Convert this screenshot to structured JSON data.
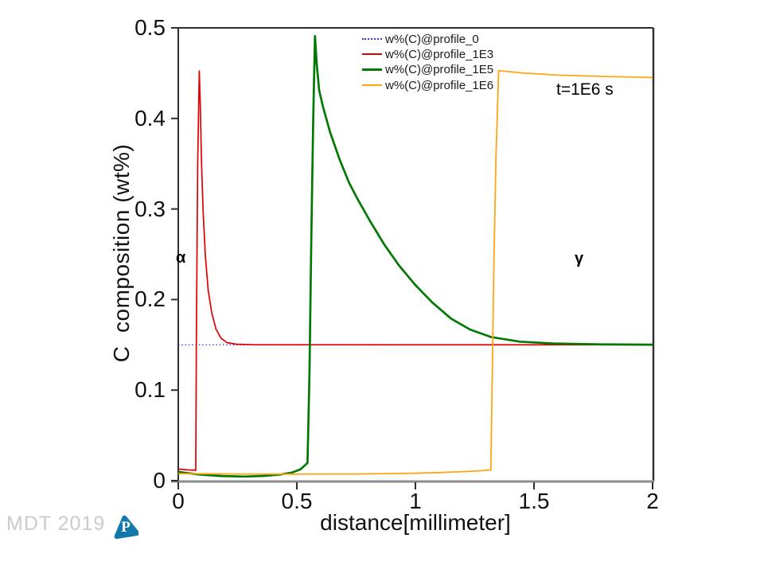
{
  "watermark": {
    "text": "MDT 2019",
    "color": "#cbcbcb"
  },
  "logo": {
    "letter": "P",
    "color": "#1478ab"
  },
  "annotations": {
    "time_label": "t=1E6 s",
    "alpha_phase": "α",
    "gamma_phase": "γ"
  },
  "chart_data": {
    "type": "line",
    "title": "",
    "xlabel": "distance[millimeter]",
    "ylabel": "C  composition (wt%)",
    "xlim": [
      0,
      2
    ],
    "ylim": [
      0,
      0.5
    ],
    "xticks": [
      0,
      0.5,
      1,
      1.5,
      2
    ],
    "xtick_labels": [
      "0",
      "0.5",
      "1",
      "1.5",
      "2"
    ],
    "yticks": [
      0,
      0.1,
      0.2,
      0.3,
      0.4,
      0.5
    ],
    "ytick_labels": [
      "0",
      "0.1",
      "0.2",
      "0.3",
      "0.4",
      "0.5"
    ],
    "grid": false,
    "axis_color": "#2e2e2e",
    "baseline_color": "#8c8c8c",
    "legend_position": "inside-top-center",
    "series": [
      {
        "name": "w%(C)@profile_0",
        "color": "#3a3ac8",
        "line_style": "dotted",
        "line_width": 1.4,
        "points": [
          [
            0,
            0.15
          ],
          [
            2,
            0.15
          ]
        ]
      },
      {
        "name": "w%(C)@profile_1E3",
        "color": "#e00000",
        "line_style": "solid",
        "line_width": 1.7,
        "points": [
          [
            0,
            0.0127
          ],
          [
            0.045,
            0.0119
          ],
          [
            0.0739,
            0.0115
          ],
          [
            0.0762,
            0.15
          ],
          [
            0.0818,
            0.35
          ],
          [
            0.0885,
            0.4525
          ],
          [
            0.0925,
            0.418
          ],
          [
            0.098,
            0.352
          ],
          [
            0.105,
            0.296
          ],
          [
            0.114,
            0.249
          ],
          [
            0.126,
            0.211
          ],
          [
            0.141,
            0.1855
          ],
          [
            0.159,
            0.1675
          ],
          [
            0.18,
            0.1575
          ],
          [
            0.205,
            0.1525
          ],
          [
            0.245,
            0.1507
          ],
          [
            0.32,
            0.1501
          ],
          [
            2,
            0.15
          ]
        ]
      },
      {
        "name": "w%(C)@profile_1E5",
        "color": "#047804",
        "line_style": "solid",
        "line_width": 2.7,
        "points": [
          [
            0,
            0.0097
          ],
          [
            0.09,
            0.0068
          ],
          [
            0.18,
            0.0052
          ],
          [
            0.28,
            0.0046
          ],
          [
            0.36,
            0.0053
          ],
          [
            0.43,
            0.0068
          ],
          [
            0.48,
            0.009
          ],
          [
            0.515,
            0.0125
          ],
          [
            0.545,
            0.0195
          ],
          [
            0.5535,
            0.12
          ],
          [
            0.561,
            0.27
          ],
          [
            0.569,
            0.4
          ],
          [
            0.5765,
            0.491
          ],
          [
            0.584,
            0.46
          ],
          [
            0.594,
            0.431
          ],
          [
            0.61,
            0.413
          ],
          [
            0.64,
            0.385
          ],
          [
            0.68,
            0.355
          ],
          [
            0.72,
            0.329
          ],
          [
            0.756,
            0.311
          ],
          [
            0.81,
            0.286
          ],
          [
            0.868,
            0.261
          ],
          [
            0.93,
            0.238
          ],
          [
            1.0,
            0.216
          ],
          [
            1.07,
            0.197
          ],
          [
            1.15,
            0.179
          ],
          [
            1.23,
            0.167
          ],
          [
            1.32,
            0.1585
          ],
          [
            1.44,
            0.1535
          ],
          [
            1.58,
            0.1515
          ],
          [
            1.78,
            0.1505
          ],
          [
            2,
            0.1502
          ]
        ]
      },
      {
        "name": "w%(C)@profile_1E6",
        "color": "#ffa513",
        "line_style": "solid",
        "line_width": 1.8,
        "points": [
          [
            0,
            0.0078
          ],
          [
            0.25,
            0.0074
          ],
          [
            0.5,
            0.0072
          ],
          [
            0.75,
            0.0074
          ],
          [
            0.95,
            0.008
          ],
          [
            1.1,
            0.009
          ],
          [
            1.2,
            0.01
          ],
          [
            1.28,
            0.011
          ],
          [
            1.318,
            0.012
          ],
          [
            1.324,
            0.12
          ],
          [
            1.331,
            0.24
          ],
          [
            1.34,
            0.36
          ],
          [
            1.351,
            0.4528
          ],
          [
            1.45,
            0.4503
          ],
          [
            1.6,
            0.4478
          ],
          [
            1.8,
            0.4463
          ],
          [
            2,
            0.4452
          ]
        ]
      }
    ]
  }
}
